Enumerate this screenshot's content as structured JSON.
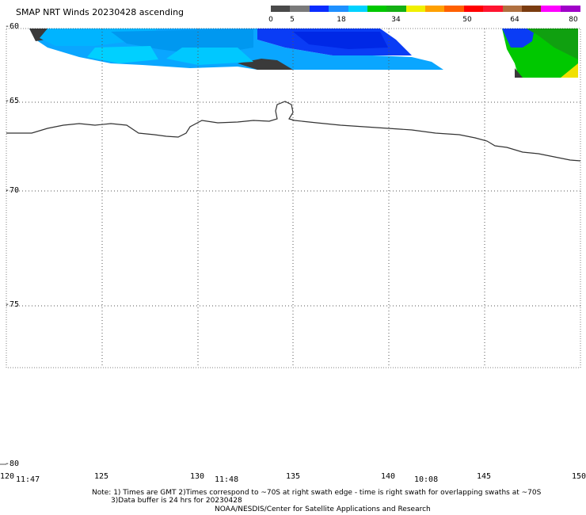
{
  "title": "SMAP NRT Winds 20230428 ascending",
  "colorbar": {
    "labels": [
      "0",
      "5",
      "18",
      "34",
      "50",
      "64",
      "80"
    ],
    "segments": [
      {
        "color": "#4a4a4a"
      },
      {
        "color": "#7a7a7a"
      },
      {
        "color": "#0a2cff"
      },
      {
        "color": "#1e90ff"
      },
      {
        "color": "#00d2ff"
      },
      {
        "color": "#00c800"
      },
      {
        "color": "#14b014"
      },
      {
        "color": "#f0f000"
      },
      {
        "color": "#ffa000"
      },
      {
        "color": "#ff6000"
      },
      {
        "color": "#ff0000"
      },
      {
        "color": "#ff1430"
      },
      {
        "color": "#b07040"
      },
      {
        "color": "#7a3c10"
      },
      {
        "color": "#ff00ff"
      },
      {
        "color": "#a000c8"
      }
    ]
  },
  "lat_labels": [
    "-60",
    "-65",
    "-70",
    "-75",
    "-80"
  ],
  "lon_labels": [
    "120",
    "125",
    "130",
    "135",
    "140",
    "145",
    "150"
  ],
  "time_labels": [
    "11:47",
    "11:48",
    "10:08"
  ],
  "notes": {
    "line1": "Note: 1) Times are GMT 2)Times correspond to ~70S at right swath edge - time is right swath for overlapping swaths at ~70S",
    "line2": "3)Data buffer is 24 hrs for 20230428",
    "line3": "NOAA/NESDIS/Center for Satellite Applications and Research"
  },
  "colors": {
    "grid": "#555555",
    "coast": "#333333"
  }
}
